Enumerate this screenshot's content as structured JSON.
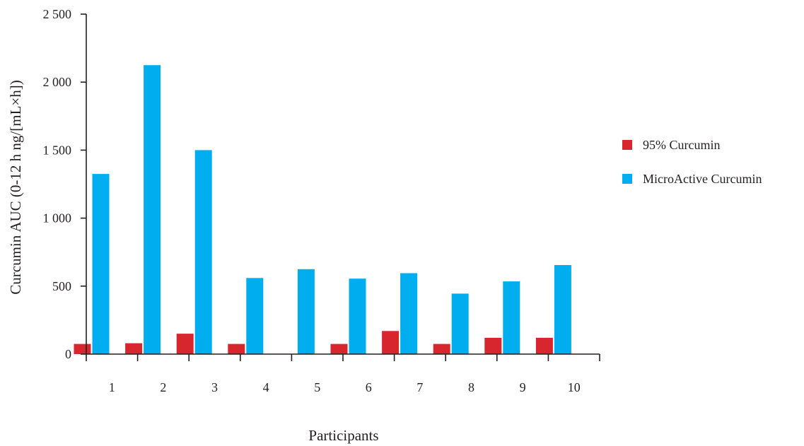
{
  "chart_data": {
    "type": "bar",
    "title": "",
    "xlabel": "Participants",
    "ylabel": "Curcumin AUC (0-12 h ng/[mL×h])",
    "ylim": [
      0,
      2500
    ],
    "yticks": [
      0,
      500,
      1000,
      1500,
      2000,
      2500
    ],
    "ytick_labels": [
      "0",
      "500",
      "1 000",
      "1 500",
      "2 000",
      "2 500"
    ],
    "categories": [
      "1",
      "2",
      "3",
      "4",
      "5",
      "6",
      "7",
      "8",
      "9",
      "10"
    ],
    "series": [
      {
        "name": "95% Curcumin",
        "color": "#d7262e",
        "values": [
          75,
          80,
          150,
          75,
          0,
          75,
          170,
          75,
          120,
          120
        ]
      },
      {
        "name": "MicroActive Curcumin",
        "color": "#00aeef",
        "values": [
          1325,
          2125,
          1500,
          560,
          625,
          555,
          595,
          445,
          535,
          655
        ]
      }
    ],
    "grid": false,
    "legend_position": "right"
  }
}
